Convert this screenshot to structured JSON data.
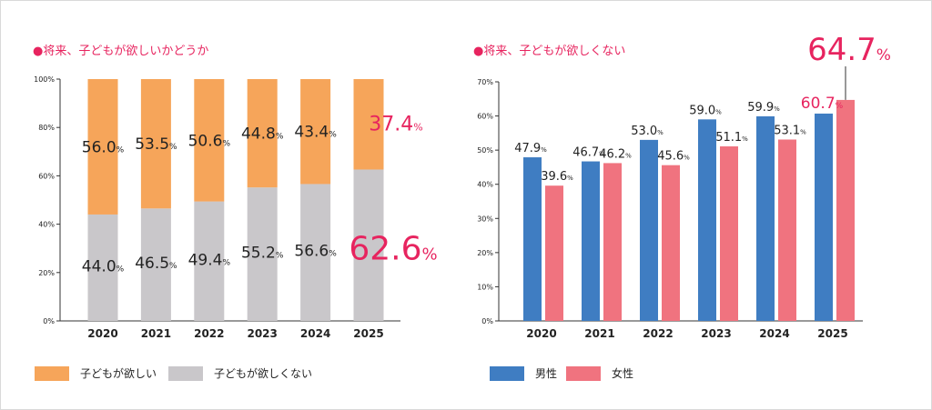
{
  "colors": {
    "want": "#f6a55a",
    "not_want": "#c9c7ca",
    "male": "#3f7dc2",
    "female": "#f0737f",
    "highlight": "#e7245f",
    "text": "#222222"
  },
  "chart_data": [
    {
      "type": "bar",
      "stacked": true,
      "title": "●将来、子どもが欲しいかどうか",
      "categories": [
        "2020",
        "2021",
        "2022",
        "2023",
        "2024",
        "2025"
      ],
      "series": [
        {
          "name": "子どもが欲しくない",
          "values": [
            44.0,
            46.5,
            49.4,
            55.2,
            56.6,
            62.6
          ],
          "labels": [
            "44.0",
            "46.5",
            "49.4",
            "55.2",
            "56.6",
            "62.6"
          ]
        },
        {
          "name": "子どもが欲しい",
          "values": [
            56.0,
            53.5,
            50.6,
            44.8,
            43.4,
            37.4
          ],
          "labels": [
            "56.0",
            "53.5",
            "50.6",
            "44.8",
            "43.4",
            "37.4"
          ]
        }
      ],
      "unit": "%",
      "ylim": [
        0,
        100
      ],
      "yticks": [
        "0%",
        "20%",
        "40%",
        "60%",
        "80%",
        "100%"
      ],
      "legend": [
        "子どもが欲しい",
        "子どもが欲しくない"
      ],
      "legend_position": "bottom"
    },
    {
      "type": "bar",
      "stacked": false,
      "title": "●将来、子どもが欲しくない",
      "categories": [
        "2020",
        "2021",
        "2022",
        "2023",
        "2024",
        "2025"
      ],
      "series": [
        {
          "name": "男性",
          "values": [
            47.9,
            46.7,
            53.0,
            59.0,
            59.9,
            60.7
          ],
          "labels": [
            "47.9",
            "46.7",
            "53.0",
            "59.0",
            "59.9",
            "60.7"
          ]
        },
        {
          "name": "女性",
          "values": [
            39.6,
            46.2,
            45.6,
            51.1,
            53.1,
            64.7
          ],
          "labels": [
            "39.6",
            "46.2",
            "45.6",
            "51.1",
            "53.1",
            "64.7"
          ]
        }
      ],
      "unit": "%",
      "ylim": [
        0,
        70
      ],
      "yticks": [
        "0%",
        "10%",
        "20%",
        "30%",
        "40%",
        "50%",
        "60%",
        "70%"
      ],
      "legend": [
        "男性",
        "女性"
      ],
      "legend_position": "bottom"
    }
  ]
}
